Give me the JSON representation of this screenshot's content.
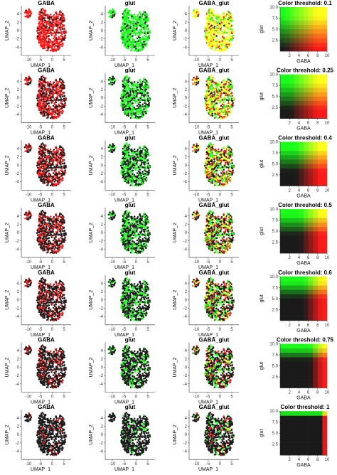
{
  "colors": {
    "low": "#1a1a1a",
    "feature1": "#ff0000",
    "feature2": "#00ff00",
    "blend": "#ffff00",
    "panel_bg": "#ffffff",
    "axis": "#333333"
  },
  "figure": {
    "layout": "7 rows x 4 columns",
    "rows": [
      {
        "threshold": "0.1",
        "panels": [
          {
            "title": "GABA",
            "kind": "umap",
            "channel": "f1",
            "density": 0.85
          },
          {
            "title": "glut",
            "kind": "umap",
            "channel": "f2",
            "density": 0.8
          },
          {
            "title": "GABA_glut",
            "kind": "umap",
            "channel": "blend",
            "density": 0.85
          },
          {
            "title": "Color threshold: 0.1",
            "kind": "legend"
          }
        ]
      },
      {
        "threshold": "0.25",
        "panels": [
          {
            "title": "GABA",
            "kind": "umap",
            "channel": "f1",
            "density": 0.6
          },
          {
            "title": "glut",
            "kind": "umap",
            "channel": "f2",
            "density": 0.6
          },
          {
            "title": "GABA_glut",
            "kind": "umap",
            "channel": "blend",
            "density": 0.65
          },
          {
            "title": "Color threshold: 0.25",
            "kind": "legend"
          }
        ]
      },
      {
        "threshold": "0.4",
        "panels": [
          {
            "title": "GABA",
            "kind": "umap",
            "channel": "f1",
            "density": 0.45
          },
          {
            "title": "glut",
            "kind": "umap",
            "channel": "f2",
            "density": 0.45
          },
          {
            "title": "GABA_glut",
            "kind": "umap",
            "channel": "blend",
            "density": 0.5
          },
          {
            "title": "Color threshold: 0.4",
            "kind": "legend"
          }
        ]
      },
      {
        "threshold": "0.5",
        "panels": [
          {
            "title": "GABA",
            "kind": "umap",
            "channel": "f1",
            "density": 0.38
          },
          {
            "title": "glut",
            "kind": "umap",
            "channel": "f2",
            "density": 0.38
          },
          {
            "title": "GABA_glut",
            "kind": "umap",
            "channel": "blend",
            "density": 0.4
          },
          {
            "title": "Color threshold: 0.5",
            "kind": "legend"
          }
        ]
      },
      {
        "threshold": "0.6",
        "panels": [
          {
            "title": "GABA",
            "kind": "umap",
            "channel": "f1",
            "density": 0.3
          },
          {
            "title": "glut",
            "kind": "umap",
            "channel": "f2",
            "density": 0.3
          },
          {
            "title": "GABA_glut",
            "kind": "umap",
            "channel": "blend",
            "density": 0.32
          },
          {
            "title": "Color threshold: 0.6",
            "kind": "legend"
          }
        ]
      },
      {
        "threshold": "0.75",
        "panels": [
          {
            "title": "GABA",
            "kind": "umap",
            "channel": "f1",
            "density": 0.2
          },
          {
            "title": "glut",
            "kind": "umap",
            "channel": "f2",
            "density": 0.2
          },
          {
            "title": "GABA_glut",
            "kind": "umap",
            "channel": "blend",
            "density": 0.22
          },
          {
            "title": "Color threshold: 0.75",
            "kind": "legend"
          }
        ]
      },
      {
        "threshold": "1",
        "panels": [
          {
            "title": "GABA",
            "kind": "umap",
            "channel": "f1",
            "density": 0.08
          },
          {
            "title": "glut",
            "kind": "umap",
            "channel": "f2",
            "density": 0.08
          },
          {
            "title": "GABA_glut",
            "kind": "umap",
            "channel": "blend",
            "density": 0.1
          },
          {
            "title": "Color threshold: 1",
            "kind": "legend"
          }
        ]
      }
    ]
  },
  "chart_data": [
    {
      "type": "scatter",
      "role": "umap_feature_plot",
      "xlabel": "UMAP_1",
      "ylabel": "UMAP_2",
      "xticks": [
        "-10",
        "-5",
        "0",
        "5"
      ],
      "yticks": [
        "4",
        "2",
        "0",
        "-2",
        "-4"
      ],
      "xlim": [
        -13,
        8
      ],
      "ylim": [
        -6,
        6
      ],
      "titles": [
        "GABA",
        "glut",
        "GABA_glut"
      ]
    },
    {
      "type": "heatmap",
      "role": "color_threshold_legend",
      "xlabel": "GABA",
      "ylabel": "glut",
      "xticks": [
        "2",
        "4",
        "6",
        "8",
        "10"
      ],
      "yticks": [
        "10.0",
        "7.5",
        "5.0",
        "2.5"
      ],
      "xlim": [
        0,
        10
      ],
      "ylim": [
        0,
        10
      ],
      "thresholds": [
        0.1,
        0.25,
        0.4,
        0.5,
        0.6,
        0.75,
        1
      ]
    }
  ]
}
